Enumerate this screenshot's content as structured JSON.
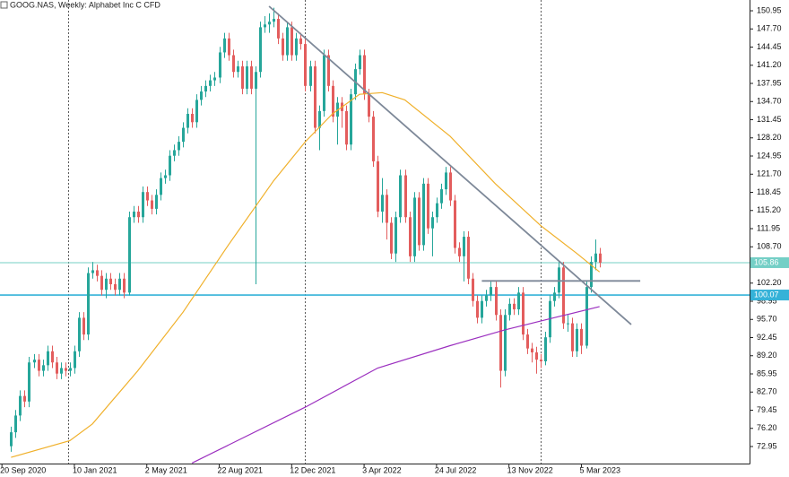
{
  "chart_data": {
    "type": "candlestick",
    "title": "GOOG.NAS, Weekly:  Alphabet Inc C CFD",
    "x": [
      "2020-10-04",
      "2020-10-11",
      "2020-10-18",
      "2020-10-25",
      "2020-11-01",
      "2020-11-08",
      "2020-11-15",
      "2020-11-22",
      "2020-11-29",
      "2020-12-06",
      "2020-12-13",
      "2020-12-20",
      "2020-12-27",
      "2021-01-03",
      "2021-01-10",
      "2021-01-17",
      "2021-01-24",
      "2021-01-31",
      "2021-02-07",
      "2021-02-14",
      "2021-02-21",
      "2021-02-28",
      "2021-03-07",
      "2021-03-14",
      "2021-03-21",
      "2021-03-28",
      "2021-04-04",
      "2021-04-11",
      "2021-04-18",
      "2021-04-25",
      "2021-05-02",
      "2021-05-09",
      "2021-05-16",
      "2021-05-23",
      "2021-05-30",
      "2021-06-06",
      "2021-06-13",
      "2021-06-20",
      "2021-06-27",
      "2021-07-04",
      "2021-07-11",
      "2021-07-18",
      "2021-07-25",
      "2021-08-01",
      "2021-08-08",
      "2021-08-15",
      "2021-08-22",
      "2021-08-29",
      "2021-09-05",
      "2021-09-12",
      "2021-09-19",
      "2021-09-26",
      "2021-10-03",
      "2021-10-10",
      "2021-10-17",
      "2021-10-24",
      "2021-10-31",
      "2021-11-07",
      "2021-11-14",
      "2021-11-21",
      "2021-11-28",
      "2021-12-05",
      "2021-12-12",
      "2021-12-19",
      "2021-12-26",
      "2022-01-02",
      "2022-01-09",
      "2022-01-16",
      "2022-01-23",
      "2022-01-30",
      "2022-02-06",
      "2022-02-13",
      "2022-02-20",
      "2022-02-27",
      "2022-03-06",
      "2022-03-13",
      "2022-03-20",
      "2022-03-27",
      "2022-04-03",
      "2022-04-10",
      "2022-04-17",
      "2022-04-24",
      "2022-05-01",
      "2022-05-08",
      "2022-05-15",
      "2022-05-22",
      "2022-05-29",
      "2022-06-05",
      "2022-06-12",
      "2022-06-19",
      "2022-06-26",
      "2022-07-03",
      "2022-07-10",
      "2022-07-17",
      "2022-07-24",
      "2022-07-31",
      "2022-08-07",
      "2022-08-14",
      "2022-08-21",
      "2022-08-28",
      "2022-09-04",
      "2022-09-11",
      "2022-09-18",
      "2022-09-25",
      "2022-10-02",
      "2022-10-09",
      "2022-10-16",
      "2022-10-23",
      "2022-10-30",
      "2022-11-06",
      "2022-11-13",
      "2022-11-20",
      "2022-11-27",
      "2022-12-04",
      "2022-12-11",
      "2022-12-18",
      "2022-12-25",
      "2023-01-01",
      "2023-01-08",
      "2023-01-15",
      "2023-01-22",
      "2023-01-29",
      "2023-02-05",
      "2023-02-12",
      "2023-02-19",
      "2023-02-26",
      "2023-03-05",
      "2023-03-12",
      "2023-03-19",
      "2023-03-26",
      "2023-04-02"
    ],
    "open": [
      73.0,
      75.5,
      78.5,
      82.0,
      81.0,
      88.0,
      88.5,
      86.5,
      87.5,
      90.0,
      88.0,
      86.0,
      87.0,
      86.5,
      87.0,
      90.0,
      96.0,
      93.0,
      104.0,
      104.5,
      103.5,
      101.0,
      103.0,
      102.0,
      101.0,
      103.0,
      100.5,
      114.0,
      115.0,
      114.0,
      118.5,
      117.0,
      115.5,
      118.0,
      121.0,
      121.5,
      125.0,
      126.0,
      127.5,
      130.0,
      132.5,
      131.0,
      135.0,
      136.5,
      137.5,
      138.5,
      139.0,
      143.5,
      146.0,
      143.0,
      140.0,
      141.0,
      137.0,
      141.0,
      137.0,
      140.0,
      148.0,
      148.5,
      149.0,
      149.5,
      146.0,
      143.0,
      148.0,
      143.0,
      146.0,
      145.0,
      137.5,
      141.0,
      130.0,
      133.0,
      143.0,
      137.5,
      132.0,
      134.5,
      133.0,
      127.0,
      136.0,
      140.5,
      143.0,
      136.0,
      132.0,
      124.0,
      115.0,
      118.0,
      113.0,
      107.5,
      114.0,
      121.5,
      114.0,
      107.0,
      117.5,
      109.0,
      120.0,
      112.0,
      114.0,
      116.5,
      119.0,
      122.0,
      117.0,
      108.5,
      107.0,
      110.5,
      103.0,
      99.0,
      96.0,
      99.0,
      100.0,
      101.5,
      96.5,
      86.5,
      96.5,
      98.5,
      97.5,
      100.5,
      93.0,
      90.5,
      89.8,
      88.5,
      88.2,
      92.5,
      99.0,
      100.5,
      105.0,
      95.0,
      95.0,
      90.0,
      94.0,
      91.0,
      101.5,
      106.0,
      107.5
    ],
    "high": [
      76.5,
      79.5,
      83.0,
      83.0,
      89.0,
      89.5,
      89.5,
      88.5,
      91.0,
      91.0,
      89.0,
      88.0,
      88.0,
      88.0,
      91.0,
      97.0,
      97.0,
      105.0,
      106.0,
      105.5,
      104.5,
      104.0,
      104.0,
      103.0,
      104.0,
      104.0,
      115.0,
      116.0,
      116.0,
      119.5,
      119.5,
      118.0,
      119.0,
      122.0,
      122.5,
      126.0,
      127.0,
      128.5,
      131.0,
      133.5,
      133.5,
      136.0,
      137.5,
      138.5,
      139.5,
      140.0,
      144.5,
      147.0,
      147.0,
      144.0,
      142.0,
      142.0,
      142.0,
      142.0,
      141.0,
      149.0,
      150.0,
      150.5,
      151.5,
      150.5,
      147.0,
      149.0,
      149.0,
      147.0,
      147.0,
      146.0,
      142.0,
      142.0,
      134.0,
      144.0,
      144.0,
      138.5,
      135.5,
      135.5,
      134.0,
      137.0,
      141.5,
      144.0,
      144.0,
      137.0,
      133.0,
      125.0,
      121.0,
      119.0,
      114.0,
      115.0,
      122.5,
      122.5,
      115.0,
      118.5,
      118.5,
      121.0,
      121.0,
      115.0,
      117.5,
      120.0,
      123.0,
      123.0,
      118.0,
      109.5,
      111.5,
      111.5,
      104.0,
      100.0,
      100.0,
      101.0,
      102.5,
      102.5,
      97.5,
      97.5,
      99.5,
      99.5,
      101.5,
      101.5,
      94.0,
      91.5,
      90.8,
      89.5,
      93.5,
      100.0,
      101.5,
      106.0,
      106.0,
      96.5,
      96.0,
      95.0,
      95.0,
      102.5,
      107.0,
      110.0,
      108.5
    ],
    "low": [
      72.0,
      74.5,
      77.5,
      80.0,
      80.0,
      87.0,
      85.5,
      85.5,
      86.5,
      87.0,
      85.0,
      85.0,
      85.5,
      85.5,
      86.0,
      89.0,
      92.0,
      92.0,
      103.0,
      102.5,
      100.0,
      99.5,
      101.0,
      100.0,
      100.0,
      99.5,
      100.0,
      113.0,
      113.0,
      113.0,
      116.0,
      114.5,
      114.5,
      117.0,
      120.0,
      120.5,
      124.0,
      125.0,
      126.5,
      129.0,
      130.0,
      130.0,
      134.0,
      135.5,
      136.5,
      137.5,
      138.0,
      142.5,
      142.0,
      139.0,
      139.0,
      136.0,
      136.0,
      136.0,
      102.0,
      139.0,
      147.0,
      147.0,
      148.0,
      145.0,
      142.0,
      142.0,
      142.0,
      142.0,
      144.0,
      136.5,
      136.5,
      129.0,
      126.0,
      132.0,
      136.5,
      131.0,
      127.0,
      130.0,
      126.0,
      126.0,
      135.0,
      139.5,
      135.0,
      131.0,
      123.0,
      114.0,
      113.0,
      110.0,
      106.5,
      106.0,
      113.0,
      113.0,
      106.0,
      106.0,
      108.0,
      108.0,
      111.0,
      107.0,
      113.0,
      115.5,
      118.0,
      116.0,
      107.5,
      106.0,
      102.5,
      102.0,
      98.0,
      95.0,
      95.0,
      98.0,
      99.0,
      95.5,
      83.5,
      85.5,
      95.5,
      96.5,
      96.5,
      92.0,
      89.5,
      88.0,
      86.0,
      87.0,
      87.5,
      91.5,
      98.0,
      99.5,
      94.0,
      93.5,
      89.0,
      89.0,
      89.5,
      90.5,
      100.5,
      104.5,
      105.0
    ],
    "close": [
      75.5,
      78.5,
      82.0,
      81.0,
      88.0,
      88.5,
      86.5,
      87.5,
      90.0,
      88.0,
      86.0,
      87.0,
      86.5,
      87.0,
      90.0,
      96.0,
      93.0,
      104.0,
      104.5,
      103.5,
      101.0,
      103.0,
      102.0,
      101.0,
      103.0,
      100.5,
      114.0,
      115.0,
      114.0,
      118.5,
      117.0,
      115.5,
      118.0,
      121.0,
      121.5,
      125.0,
      126.0,
      127.5,
      130.0,
      132.5,
      131.0,
      135.0,
      136.5,
      137.5,
      138.5,
      139.0,
      143.5,
      146.0,
      143.0,
      140.0,
      141.0,
      137.0,
      141.0,
      137.0,
      140.0,
      148.0,
      148.5,
      149.0,
      149.5,
      146.0,
      143.0,
      148.0,
      143.0,
      146.0,
      145.0,
      137.5,
      141.0,
      130.0,
      133.0,
      143.0,
      137.5,
      132.0,
      134.5,
      133.0,
      127.0,
      136.0,
      140.5,
      143.0,
      136.0,
      132.0,
      124.0,
      115.0,
      118.0,
      113.0,
      107.5,
      114.0,
      121.5,
      114.0,
      107.0,
      117.5,
      109.0,
      120.0,
      112.0,
      114.0,
      116.5,
      119.0,
      122.0,
      117.0,
      108.5,
      107.0,
      110.5,
      103.0,
      99.0,
      96.0,
      99.0,
      100.0,
      101.5,
      96.5,
      86.5,
      96.5,
      98.5,
      97.5,
      100.5,
      93.0,
      90.5,
      89.8,
      88.5,
      88.2,
      92.5,
      99.0,
      100.5,
      105.0,
      95.0,
      95.0,
      90.0,
      94.0,
      91.0,
      101.5,
      106.0,
      107.5,
      105.86
    ],
    "up_color": "#26a69a",
    "down_color": "#e35d5d",
    "lines": [
      {
        "color": "#f0b02a",
        "x": [
          "2020-10-04",
          "2021-01-03",
          "2021-02-07",
          "2021-04-18",
          "2021-06-27",
          "2021-09-05",
          "2021-11-14",
          "2022-01-02",
          "2022-02-13",
          "2022-03-27",
          "2022-05-01",
          "2022-06-05",
          "2022-08-14",
          "2022-10-23",
          "2023-01-01",
          "2023-02-26",
          "2023-04-02"
        ],
        "values": [
          71.0,
          74.0,
          77.0,
          86.5,
          97.0,
          109.0,
          120.5,
          127.5,
          132.5,
          136.0,
          136.3,
          135.0,
          128.5,
          120.0,
          112.5,
          107.5,
          104.2
        ]
      },
      {
        "color": "#9b2fbf",
        "x": [
          "2021-07-11",
          "2022-01-02",
          "2022-04-24",
          "2022-08-14",
          "2022-11-06",
          "2023-01-29",
          "2023-04-02"
        ],
        "values": [
          70.0,
          80.0,
          87.0,
          91.0,
          93.8,
          96.2,
          98.0
        ]
      }
    ],
    "trendlines": [
      {
        "color": "#7d8898",
        "x": [
          "2021-11-07",
          "2023-05-21"
        ],
        "values": [
          151.75,
          94.8
        ]
      },
      {
        "color": "#7d8898",
        "x": [
          "2022-10-02",
          "2023-06-04"
        ],
        "values": [
          102.6,
          102.6
        ]
      }
    ],
    "price_lines": [
      {
        "value": 105.86,
        "color": "#74cfc6"
      },
      {
        "value": 100.07,
        "color": "#35b2d8"
      }
    ],
    "separators": [
      "2021-01-01",
      "2022-01-01",
      "2023-01-01"
    ],
    "xlim": [
      "2020-09-17",
      "2023-11-20"
    ],
    "ylim": [
      69.9,
      152.88
    ],
    "xticks": [
      {
        "value": "2020-09-20",
        "label": "20 Sep 2020"
      },
      {
        "value": "2021-01-10",
        "label": "10 Jan 2021"
      },
      {
        "value": "2021-05-02",
        "label": "2 May 2021"
      },
      {
        "value": "2021-08-22",
        "label": "22 Aug 2021"
      },
      {
        "value": "2021-12-12",
        "label": "12 Dec 2021"
      },
      {
        "value": "2022-04-03",
        "label": "3 Apr 2022"
      },
      {
        "value": "2022-07-24",
        "label": "24 Jul 2022"
      },
      {
        "value": "2022-11-13",
        "label": "13 Nov 2022"
      },
      {
        "value": "2023-03-05",
        "label": "5 Mar 2023"
      }
    ],
    "yticks": [
      150.95,
      {
        "value": 147.7,
        "label": "147.70"
      },
      144.45,
      {
        "value": 141.2,
        "label": "141.20"
      },
      137.95,
      {
        "value": 134.7,
        "label": "134.70"
      },
      131.45,
      {
        "value": 128.2,
        "label": "128.20"
      },
      124.95,
      {
        "value": 121.7,
        "label": "121.70"
      },
      118.45,
      {
        "value": 115.2,
        "label": "115.20"
      },
      111.95,
      {
        "value": 108.7,
        "label": "108.70"
      },
      {
        "value": 102.2,
        "label": "102.20"
      },
      98.95,
      {
        "value": 95.7,
        "label": "95.70"
      },
      92.45,
      {
        "value": 89.2,
        "label": "89.20"
      },
      85.95,
      {
        "value": 82.7,
        "label": "82.70"
      },
      79.45,
      {
        "value": 76.2,
        "label": "76.20"
      },
      72.95
    ]
  }
}
